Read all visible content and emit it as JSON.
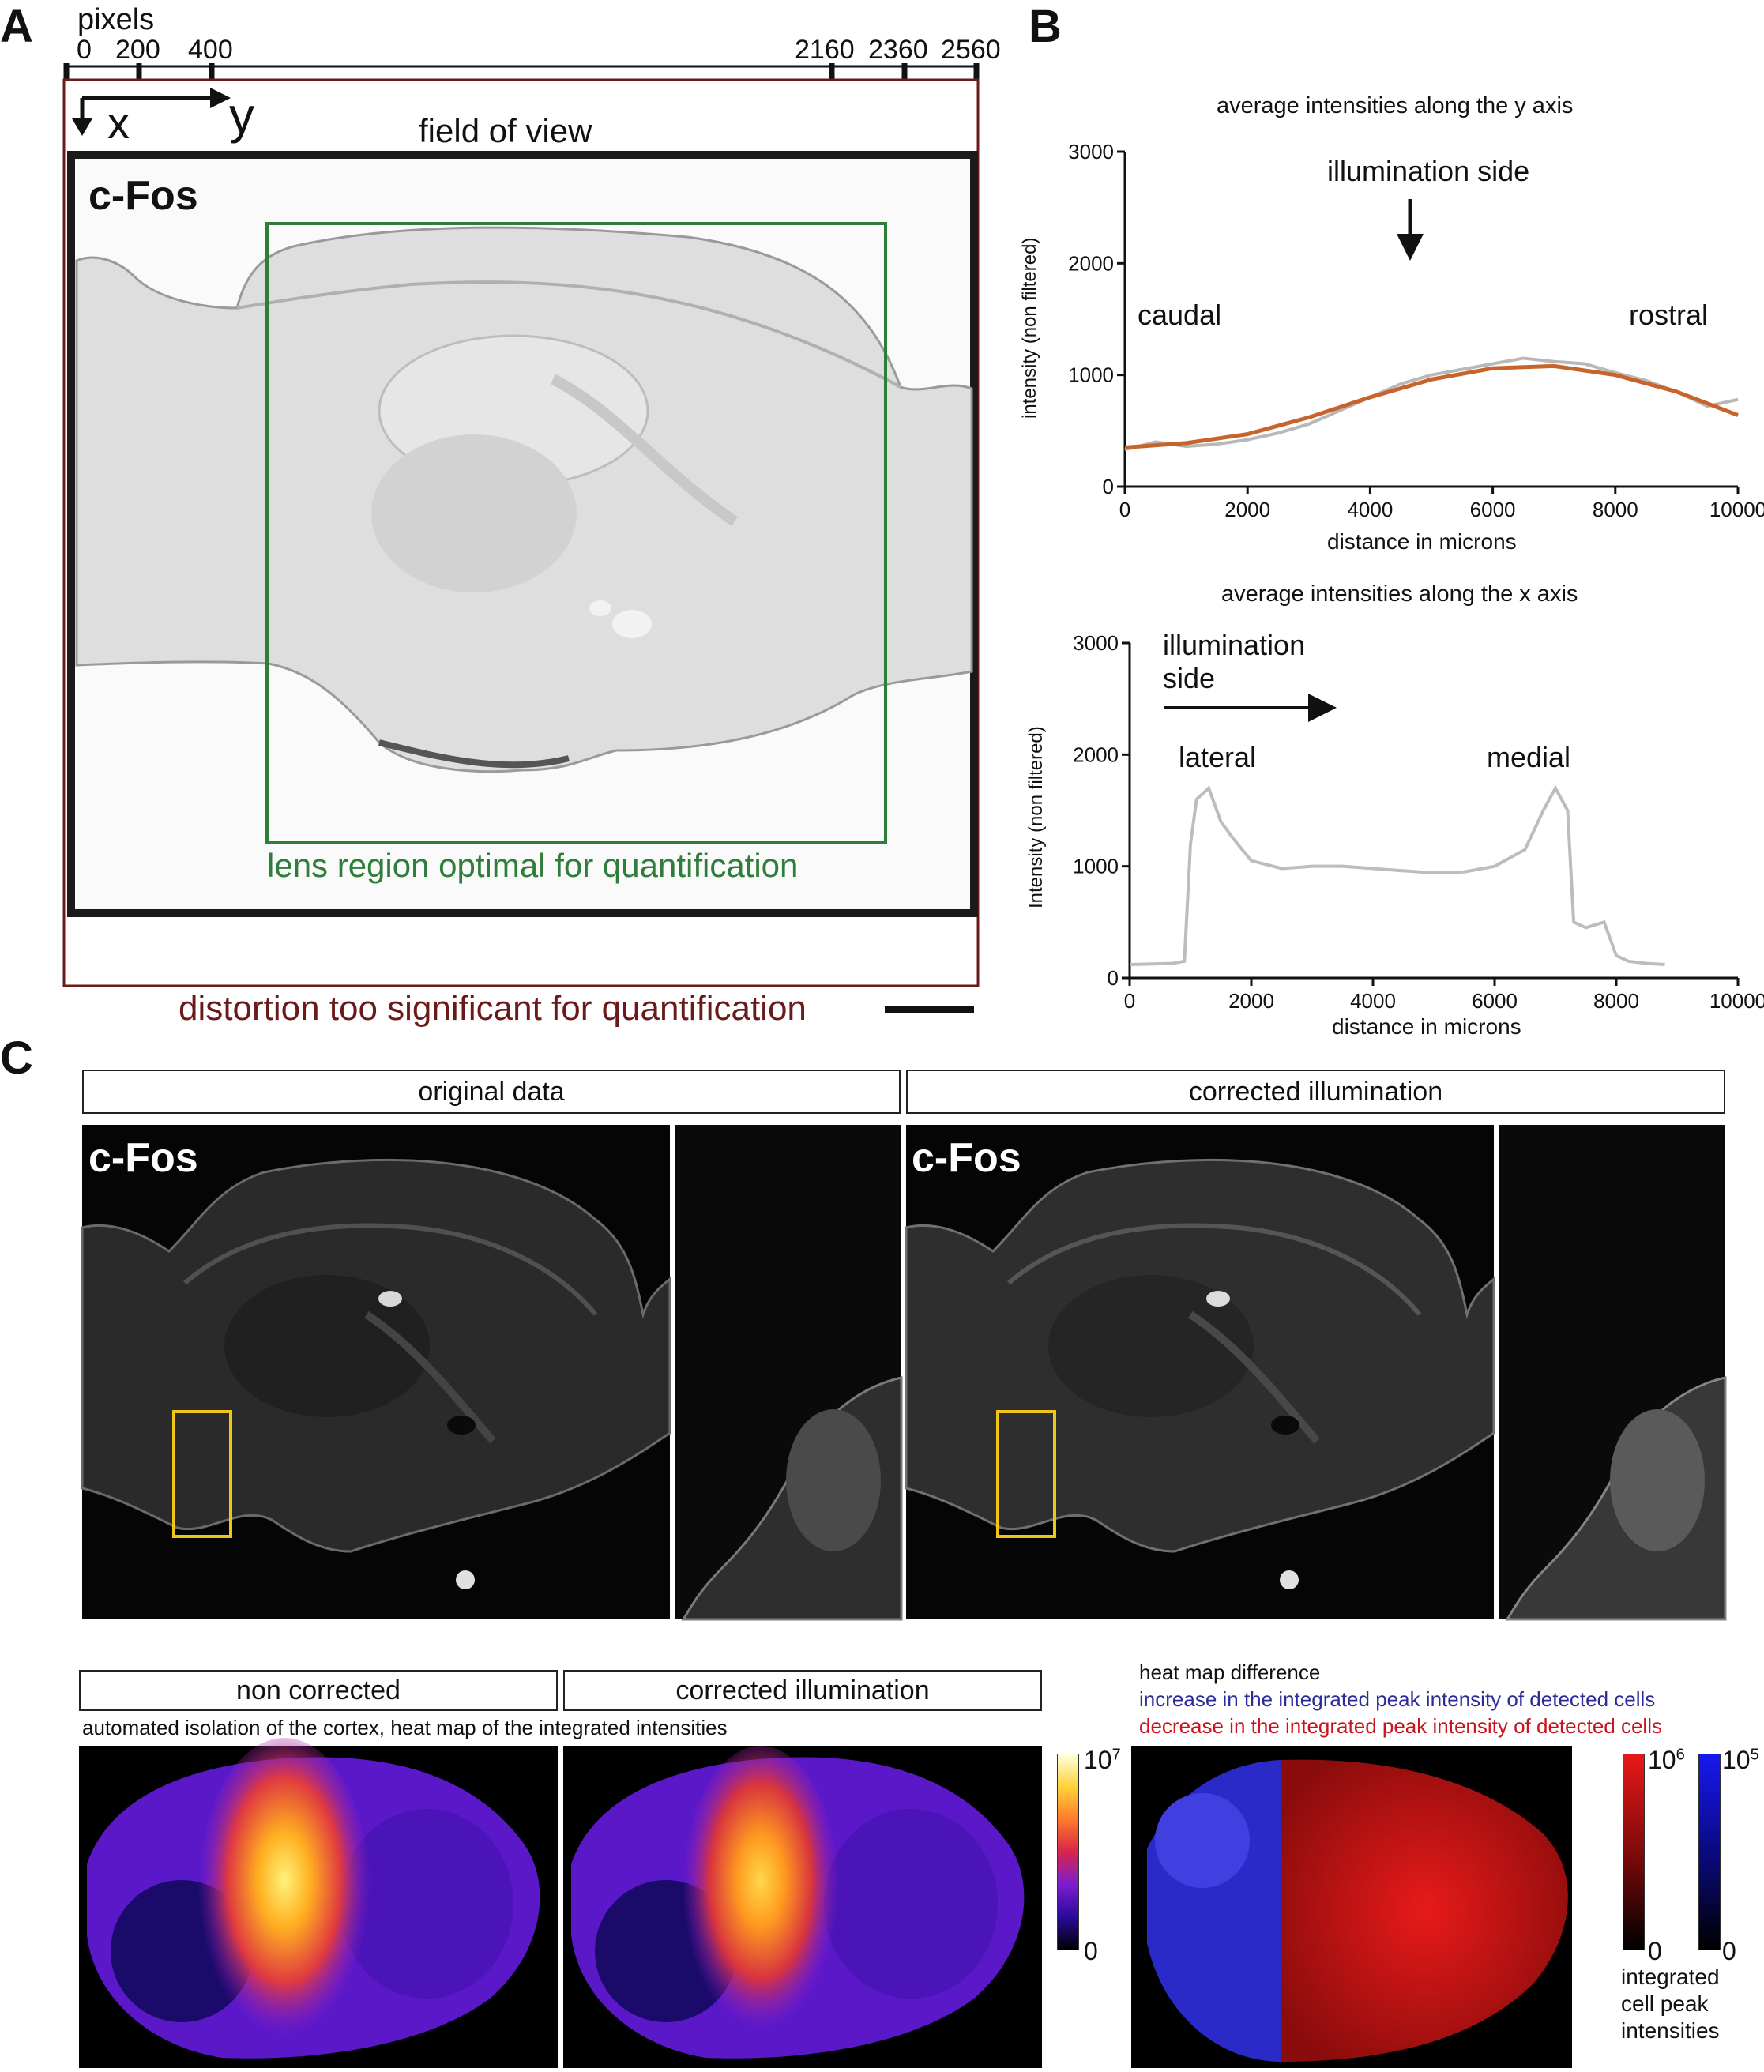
{
  "panels": {
    "a_letter": "A",
    "b_letter": "B",
    "c_letter": "C"
  },
  "panel_a": {
    "pixels_label": "pixels",
    "ticks": [
      "0",
      "200",
      "400",
      "2160",
      "2360",
      "2560"
    ],
    "axis_x": "x",
    "axis_y": "y",
    "fov_label": "field of view",
    "stain_label": "c-Fos",
    "lens_label": "lens region optimal for quantification",
    "distortion_label": "distortion too significant for quantification",
    "colors": {
      "lens": "#2e7d3a",
      "distortion": "#6b1a1a"
    }
  },
  "chart_data": [
    {
      "type": "line",
      "title": "average intensities along the y axis",
      "xlabel": "distance in microns",
      "ylabel": "intensity (non filtered)",
      "xlim": [
        0,
        10000
      ],
      "ylim": [
        0,
        3000
      ],
      "xticks": [
        0,
        2000,
        4000,
        6000,
        8000,
        10000
      ],
      "yticks": [
        0,
        1000,
        2000,
        3000
      ],
      "annotations": [
        "illumination side",
        "caudal",
        "rostral"
      ],
      "series": [
        {
          "values_x": [
            0,
            500,
            1000,
            1500,
            2000,
            2500,
            3000,
            3500,
            4000,
            4500,
            5000,
            5500,
            6000,
            6500,
            7000,
            7500,
            8000,
            8500,
            9000,
            9500,
            10000
          ],
          "values_y": [
            330,
            400,
            360,
            380,
            420,
            480,
            560,
            680,
            800,
            920,
            1000,
            1050,
            1100,
            1150,
            1120,
            1100,
            1020,
            950,
            850,
            720,
            780
          ],
          "color": "#b8b8b8"
        },
        {
          "values_x": [
            0,
            1000,
            2000,
            3000,
            4000,
            5000,
            6000,
            7000,
            8000,
            9000,
            10000
          ],
          "values_y": [
            350,
            390,
            470,
            620,
            800,
            960,
            1060,
            1080,
            1000,
            850,
            640
          ],
          "color": "#c8642a"
        }
      ]
    },
    {
      "type": "line",
      "title": "average intensities along the x axis",
      "xlabel": "distance in microns",
      "ylabel": "Intensity (non filtered)",
      "xlim": [
        0,
        10000
      ],
      "ylim": [
        0,
        3000
      ],
      "xticks": [
        0,
        2000,
        4000,
        6000,
        8000,
        10000
      ],
      "yticks": [
        0,
        1000,
        2000,
        3000
      ],
      "annotations": [
        "illumination side",
        "lateral",
        "medial"
      ],
      "series": [
        {
          "values_x": [
            0,
            700,
            900,
            1000,
            1100,
            1300,
            1500,
            1700,
            2000,
            2500,
            3000,
            3500,
            4000,
            4500,
            5000,
            5500,
            6000,
            6500,
            6800,
            7000,
            7200,
            7300,
            7500,
            7800,
            8000,
            8200,
            8500,
            8800
          ],
          "values_y": [
            120,
            130,
            150,
            1200,
            1600,
            1700,
            1400,
            1250,
            1050,
            980,
            1000,
            1000,
            980,
            960,
            940,
            950,
            1000,
            1150,
            1500,
            1700,
            1500,
            500,
            450,
            500,
            200,
            150,
            130,
            120
          ],
          "color": "#bdbdbd"
        }
      ]
    },
    {
      "type": "heatmap",
      "colorbar_min": "0",
      "colorbar_max": "10^7"
    },
    {
      "type": "heatmap",
      "colorbar_red_max": "10^6",
      "colorbar_blue_max": "10^5",
      "colorbar_min": "0",
      "colorbar_label": "integrated cell peak intensities"
    }
  ],
  "panel_c": {
    "original_header": "original data",
    "corrected_header": "corrected illumination",
    "stain_left": "c-Fos",
    "stain_right": "c-Fos",
    "non_corrected_header": "non corrected",
    "corrected_header_2": "corrected illumination",
    "cortex_caption": "automated isolation of the cortex, heat map of the integrated intensities",
    "diff_title": "heat map difference",
    "diff_increase": "increase in the integrated peak intensity of detected cells",
    "diff_decrease": "decrease in the integrated peak intensity of detected cells",
    "cb1_max_base": "10",
    "cb1_max_exp": "7",
    "cb1_min": "0",
    "cb2_red_base": "10",
    "cb2_red_exp": "6",
    "cb2_blue_base": "10",
    "cb2_blue_exp": "5",
    "cb2_min_red": "0",
    "cb2_min_blue": "0",
    "cb2_label_1": "integrated",
    "cb2_label_2": "cell peak",
    "cb2_label_3": "intensities",
    "colors": {
      "increase": "#2b2b9a",
      "decrease": "#c8141e",
      "roi": "#f0c419"
    }
  }
}
